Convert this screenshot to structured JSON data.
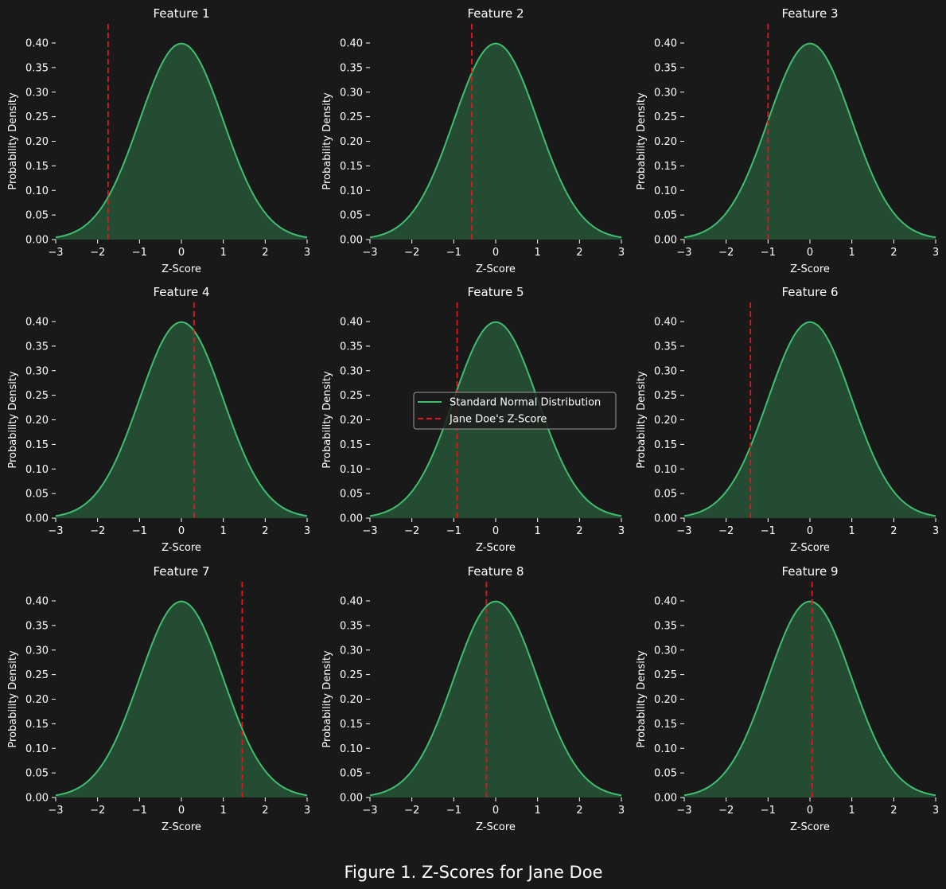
{
  "figure": {
    "caption": "Figure 1. Z-Scores for Jane Doe",
    "background_color": "#191919"
  },
  "legend": {
    "placement": "center",
    "entries": [
      {
        "label": "Standard Normal Distribution",
        "style": "solid",
        "color": "#3fbf6f"
      },
      {
        "label": "Jane Doe's Z-Score",
        "style": "dashed",
        "color": "#e8141c"
      }
    ]
  },
  "colors": {
    "curve": "#3fbf6f",
    "fill": "#244c33",
    "marker": "#e8141c",
    "text": "#ffffff"
  },
  "chart_data": [
    {
      "type": "area",
      "title": "Feature 1",
      "xlabel": "Z-Score",
      "ylabel": "Probability Density",
      "xlim": [
        -3,
        3
      ],
      "ylim": [
        0,
        0.4
      ],
      "xticks": [
        -3,
        -2,
        -1,
        0,
        1,
        2,
        3
      ],
      "yticks": [
        "0.00",
        "0.05",
        "0.10",
        "0.15",
        "0.20",
        "0.25",
        "0.30",
        "0.35",
        "0.40"
      ],
      "series": [
        {
          "name": "Standard Normal Distribution",
          "distribution": "normal",
          "mean": 0,
          "sd": 1
        }
      ],
      "marker": {
        "name": "Jane Doe's Z-Score",
        "x": -1.75
      },
      "grid": false
    },
    {
      "type": "area",
      "title": "Feature 2",
      "xlabel": "Z-Score",
      "ylabel": "Probability Density",
      "xlim": [
        -3,
        3
      ],
      "ylim": [
        0,
        0.4
      ],
      "xticks": [
        -3,
        -2,
        -1,
        0,
        1,
        2,
        3
      ],
      "yticks": [
        "0.00",
        "0.05",
        "0.10",
        "0.15",
        "0.20",
        "0.25",
        "0.30",
        "0.35",
        "0.40"
      ],
      "series": [
        {
          "name": "Standard Normal Distribution",
          "distribution": "normal",
          "mean": 0,
          "sd": 1
        }
      ],
      "marker": {
        "name": "Jane Doe's Z-Score",
        "x": -0.57
      },
      "grid": false
    },
    {
      "type": "area",
      "title": "Feature 3",
      "xlabel": "Z-Score",
      "ylabel": "Probability Density",
      "xlim": [
        -3,
        3
      ],
      "ylim": [
        0,
        0.4
      ],
      "xticks": [
        -3,
        -2,
        -1,
        0,
        1,
        2,
        3
      ],
      "yticks": [
        "0.00",
        "0.05",
        "0.10",
        "0.15",
        "0.20",
        "0.25",
        "0.30",
        "0.35",
        "0.40"
      ],
      "series": [
        {
          "name": "Standard Normal Distribution",
          "distribution": "normal",
          "mean": 0,
          "sd": 1
        }
      ],
      "marker": {
        "name": "Jane Doe's Z-Score",
        "x": -1.0
      },
      "grid": false
    },
    {
      "type": "area",
      "title": "Feature 4",
      "xlabel": "Z-Score",
      "ylabel": "Probability Density",
      "xlim": [
        -3,
        3
      ],
      "ylim": [
        0,
        0.4
      ],
      "xticks": [
        -3,
        -2,
        -1,
        0,
        1,
        2,
        3
      ],
      "yticks": [
        "0.00",
        "0.05",
        "0.10",
        "0.15",
        "0.20",
        "0.25",
        "0.30",
        "0.35",
        "0.40"
      ],
      "series": [
        {
          "name": "Standard Normal Distribution",
          "distribution": "normal",
          "mean": 0,
          "sd": 1
        }
      ],
      "marker": {
        "name": "Jane Doe's Z-Score",
        "x": 0.3
      },
      "grid": false
    },
    {
      "type": "area",
      "title": "Feature 5",
      "xlabel": "Z-Score",
      "ylabel": "Probability Density",
      "xlim": [
        -3,
        3
      ],
      "ylim": [
        0,
        0.4
      ],
      "xticks": [
        -3,
        -2,
        -1,
        0,
        1,
        2,
        3
      ],
      "yticks": [
        "0.00",
        "0.05",
        "0.10",
        "0.15",
        "0.20",
        "0.25",
        "0.30",
        "0.35",
        "0.40"
      ],
      "series": [
        {
          "name": "Standard Normal Distribution",
          "distribution": "normal",
          "mean": 0,
          "sd": 1
        }
      ],
      "marker": {
        "name": "Jane Doe's Z-Score",
        "x": -0.92
      },
      "grid": false
    },
    {
      "type": "area",
      "title": "Feature 6",
      "xlabel": "Z-Score",
      "ylabel": "Probability Density",
      "xlim": [
        -3,
        3
      ],
      "ylim": [
        0,
        0.4
      ],
      "xticks": [
        -3,
        -2,
        -1,
        0,
        1,
        2,
        3
      ],
      "yticks": [
        "0.00",
        "0.05",
        "0.10",
        "0.15",
        "0.20",
        "0.25",
        "0.30",
        "0.35",
        "0.40"
      ],
      "series": [
        {
          "name": "Standard Normal Distribution",
          "distribution": "normal",
          "mean": 0,
          "sd": 1
        }
      ],
      "marker": {
        "name": "Jane Doe's Z-Score",
        "x": -1.42
      },
      "grid": false
    },
    {
      "type": "area",
      "title": "Feature 7",
      "xlabel": "Z-Score",
      "ylabel": "Probability Density",
      "xlim": [
        -3,
        3
      ],
      "ylim": [
        0,
        0.4
      ],
      "xticks": [
        -3,
        -2,
        -1,
        0,
        1,
        2,
        3
      ],
      "yticks": [
        "0.00",
        "0.05",
        "0.10",
        "0.15",
        "0.20",
        "0.25",
        "0.30",
        "0.35",
        "0.40"
      ],
      "series": [
        {
          "name": "Standard Normal Distribution",
          "distribution": "normal",
          "mean": 0,
          "sd": 1
        }
      ],
      "marker": {
        "name": "Jane Doe's Z-Score",
        "x": 1.45
      },
      "grid": false
    },
    {
      "type": "area",
      "title": "Feature 8",
      "xlabel": "Z-Score",
      "ylabel": "Probability Density",
      "xlim": [
        -3,
        3
      ],
      "ylim": [
        0,
        0.4
      ],
      "xticks": [
        -3,
        -2,
        -1,
        0,
        1,
        2,
        3
      ],
      "yticks": [
        "0.00",
        "0.05",
        "0.10",
        "0.15",
        "0.20",
        "0.25",
        "0.30",
        "0.35",
        "0.40"
      ],
      "series": [
        {
          "name": "Standard Normal Distribution",
          "distribution": "normal",
          "mean": 0,
          "sd": 1
        }
      ],
      "marker": {
        "name": "Jane Doe's Z-Score",
        "x": -0.22
      },
      "grid": false
    },
    {
      "type": "area",
      "title": "Feature 9",
      "xlabel": "Z-Score",
      "ylabel": "Probability Density",
      "xlim": [
        -3,
        3
      ],
      "ylim": [
        0,
        0.4
      ],
      "xticks": [
        -3,
        -2,
        -1,
        0,
        1,
        2,
        3
      ],
      "yticks": [
        "0.00",
        "0.05",
        "0.10",
        "0.15",
        "0.20",
        "0.25",
        "0.30",
        "0.35",
        "0.40"
      ],
      "series": [
        {
          "name": "Standard Normal Distribution",
          "distribution": "normal",
          "mean": 0,
          "sd": 1
        }
      ],
      "marker": {
        "name": "Jane Doe's Z-Score",
        "x": 0.05
      },
      "grid": false
    }
  ]
}
